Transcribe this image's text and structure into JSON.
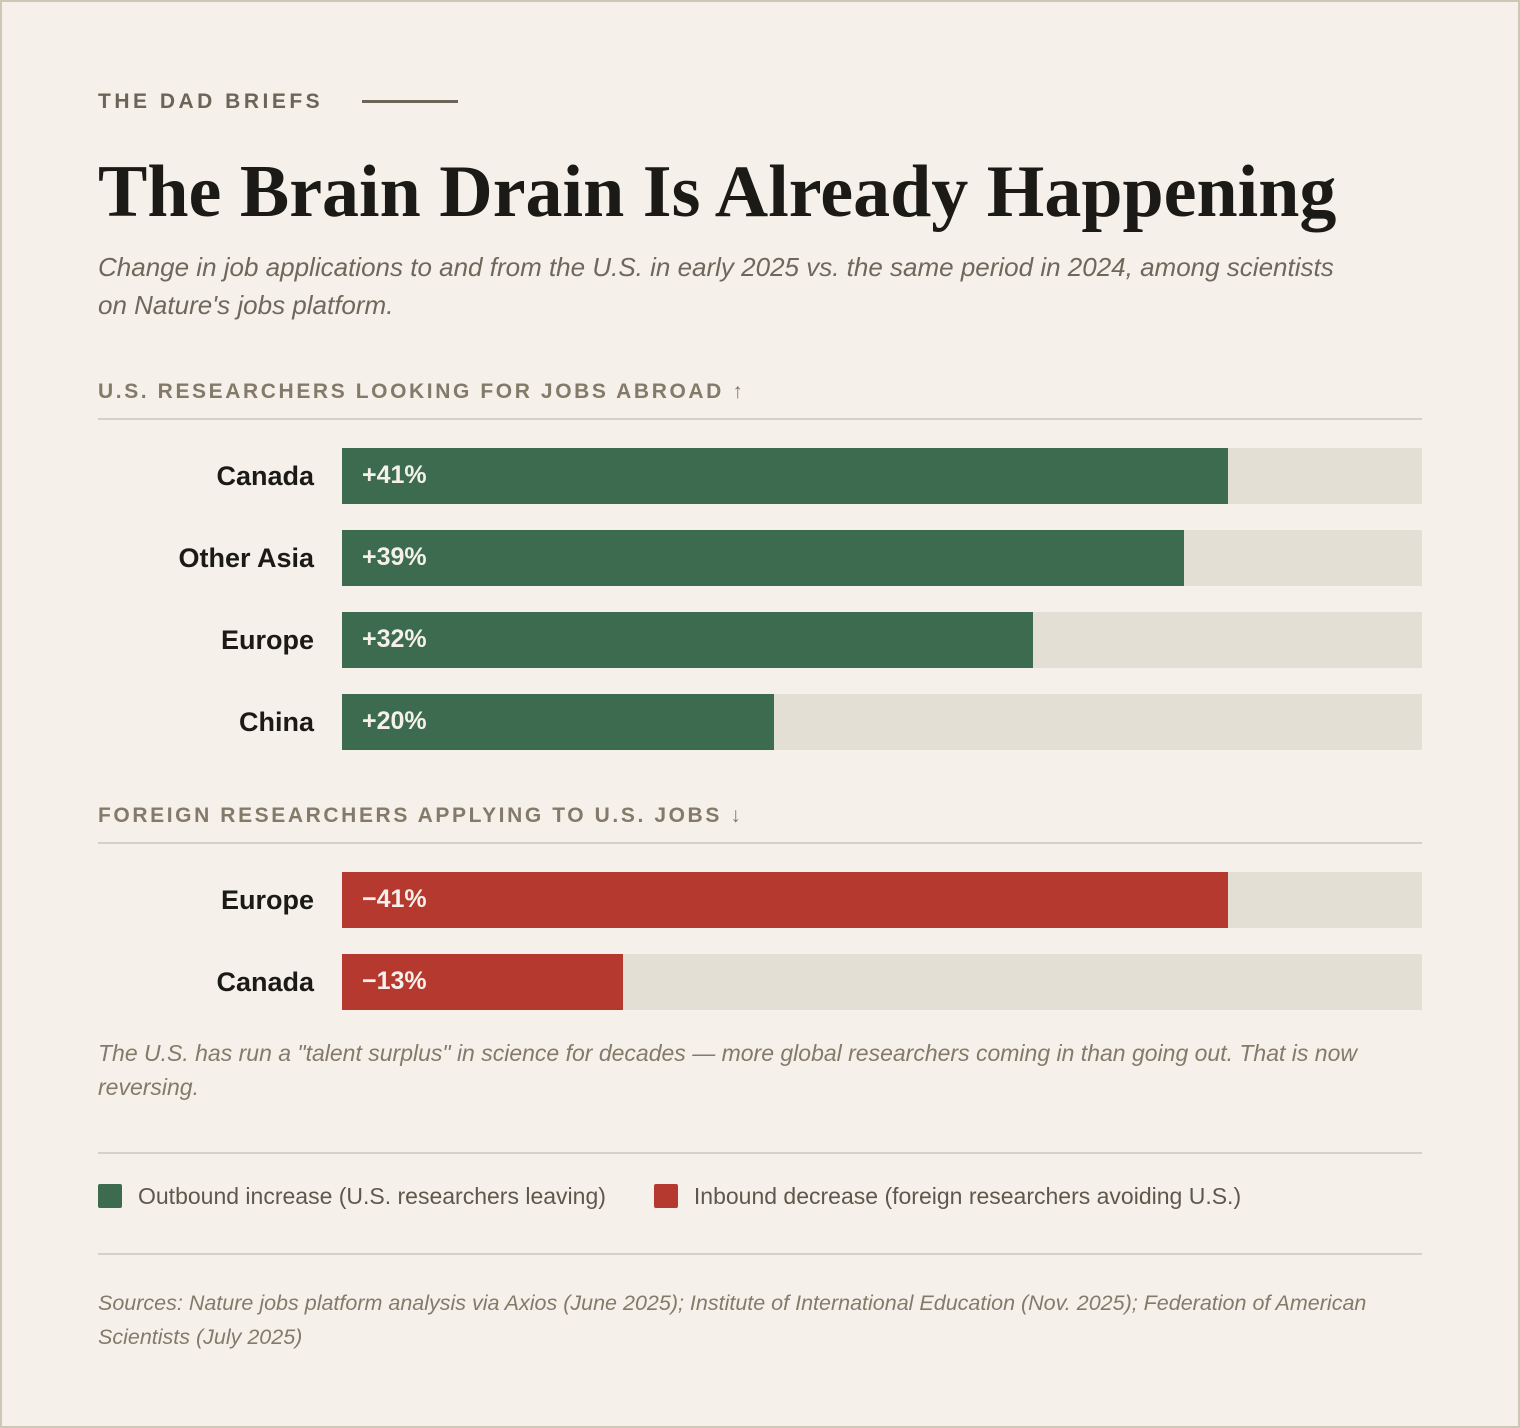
{
  "kicker": "THE DAD BRIEFS",
  "title": "The Brain Drain Is Already Happening",
  "subtitle": "Change in job applications to and from the U.S. in early 2025 vs. the same period in 2024, among scientists on Nature's jobs platform.",
  "chart_data": [
    {
      "type": "bar",
      "orientation": "horizontal",
      "title": "U.S. RESEARCHERS LOOKING FOR JOBS ABROAD ↑",
      "name": "Outbound increase (U.S. researchers leaving)",
      "categories": [
        "Canada",
        "Other Asia",
        "Europe",
        "China"
      ],
      "values": [
        41,
        39,
        32,
        20
      ],
      "value_labels": [
        "+41%",
        "+39%",
        "+32%",
        "+20%"
      ],
      "color": "#3d6b4f",
      "xlim": [
        0,
        50
      ]
    },
    {
      "type": "bar",
      "orientation": "horizontal",
      "title": "FOREIGN RESEARCHERS APPLYING TO U.S. JOBS ↓",
      "name": "Inbound decrease (foreign researchers avoiding U.S.)",
      "categories": [
        "Europe",
        "Canada"
      ],
      "values": [
        -41,
        -13
      ],
      "value_labels": [
        "−41%",
        "−13%"
      ],
      "color": "#b5392f",
      "xlim": [
        0,
        -50
      ]
    }
  ],
  "note": "The U.S. has run a \"talent surplus\" in science for decades — more global researchers coming in than going out. That is now reversing.",
  "sources": "Sources: Nature jobs platform analysis via Axios (June 2025); Institute of International Education (Nov. 2025); Federation of American Scientists (July 2025)"
}
